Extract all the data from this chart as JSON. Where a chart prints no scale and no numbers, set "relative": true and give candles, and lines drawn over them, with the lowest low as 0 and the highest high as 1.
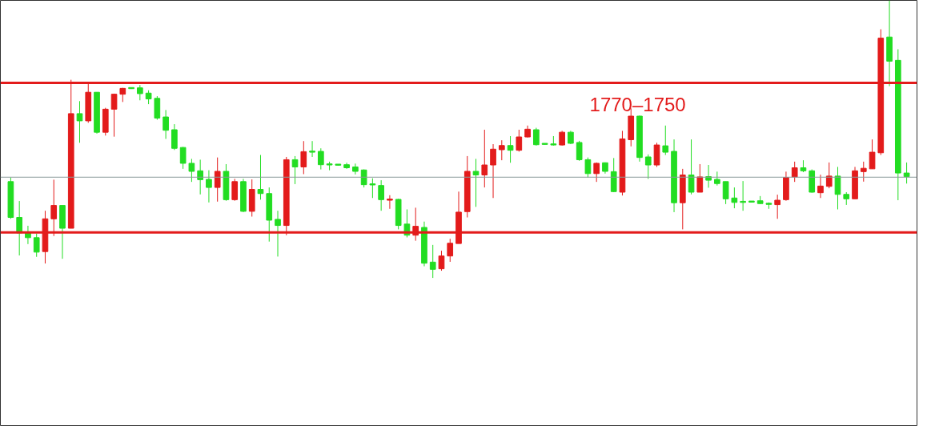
{
  "chart_data": {
    "type": "candlestick",
    "relative": true,
    "grid": false,
    "tick_labels": false,
    "annotations": [
      "1770–1750"
    ],
    "ref_lines": [
      {
        "axis": "y",
        "value": 0.703,
        "color": "#e31b1b"
      },
      {
        "axis": "y",
        "value": 0.164,
        "color": "#e31b1b"
      },
      {
        "axis": "y",
        "value": 0.363,
        "color": "#8a9a9a"
      }
    ],
    "categories": [
      null,
      null,
      null,
      null,
      null,
      null,
      null,
      null,
      null,
      null,
      null,
      null,
      null,
      null,
      null,
      null,
      null,
      null,
      null,
      null,
      null,
      null,
      null,
      null,
      null,
      null,
      null,
      null,
      null,
      null,
      null,
      null,
      null,
      null,
      null,
      null,
      null,
      null,
      null,
      null,
      null,
      null,
      null,
      null,
      null,
      null,
      null,
      null,
      null,
      null,
      null,
      null,
      null,
      null,
      null,
      null,
      null,
      null,
      null,
      null,
      null,
      null,
      null,
      null,
      null,
      null,
      null,
      null,
      null,
      null,
      null,
      null,
      null,
      null,
      null,
      null,
      null,
      null,
      null,
      null,
      null,
      null,
      null,
      null,
      null,
      null,
      null,
      null,
      null,
      null,
      null,
      null,
      null,
      null,
      null,
      null,
      null,
      null,
      null,
      null,
      null,
      null,
      null,
      null,
      null
    ],
    "ohlc": [
      [
        0.347,
        0.362,
        0.213,
        0.218
      ],
      [
        0.218,
        0.277,
        0.081,
        0.162
      ],
      [
        0.162,
        0.188,
        0.122,
        0.145
      ],
      [
        0.145,
        0.16,
        0.076,
        0.093
      ],
      [
        0.095,
        0.242,
        0.052,
        0.213
      ],
      [
        0.213,
        0.354,
        0.151,
        0.261
      ],
      [
        0.261,
        0.261,
        0.069,
        0.179
      ],
      [
        0.179,
        0.714,
        0.179,
        0.592
      ],
      [
        0.592,
        0.637,
        0.487,
        0.566
      ],
      [
        0.566,
        0.703,
        0.559,
        0.669
      ],
      [
        0.669,
        0.669,
        0.52,
        0.525
      ],
      [
        0.525,
        0.613,
        0.513,
        0.608
      ],
      [
        0.608,
        0.664,
        0.509,
        0.662
      ],
      [
        0.662,
        0.685,
        0.634,
        0.683
      ],
      [
        0.683,
        0.684,
        0.681,
        0.682
      ],
      [
        0.685,
        0.695,
        0.64,
        0.664
      ],
      [
        0.666,
        0.676,
        0.626,
        0.645
      ],
      [
        0.647,
        0.655,
        0.57,
        0.576
      ],
      [
        0.58,
        0.605,
        0.501,
        0.532
      ],
      [
        0.534,
        0.554,
        0.461,
        0.467
      ],
      [
        0.47,
        0.472,
        0.393,
        0.413
      ],
      [
        0.413,
        0.429,
        0.346,
        0.384
      ],
      [
        0.386,
        0.426,
        0.301,
        0.354
      ],
      [
        0.355,
        0.388,
        0.272,
        0.326
      ],
      [
        0.326,
        0.434,
        0.275,
        0.384
      ],
      [
        0.384,
        0.41,
        0.278,
        0.282
      ],
      [
        0.282,
        0.357,
        0.278,
        0.347
      ],
      [
        0.347,
        0.357,
        0.237,
        0.24
      ],
      [
        0.24,
        0.355,
        0.221,
        0.319
      ],
      [
        0.319,
        0.443,
        0.282,
        0.304
      ],
      [
        0.304,
        0.326,
        0.131,
        0.208
      ],
      [
        0.211,
        0.242,
        0.077,
        0.189
      ],
      [
        0.189,
        0.436,
        0.154,
        0.426
      ],
      [
        0.426,
        0.439,
        0.338,
        0.4
      ],
      [
        0.4,
        0.493,
        0.374,
        0.455
      ],
      [
        0.455,
        0.493,
        0.436,
        0.453
      ],
      [
        0.456,
        0.467,
        0.391,
        0.408
      ],
      [
        0.41,
        0.419,
        0.388,
        0.407
      ],
      [
        0.407,
        0.408,
        0.405,
        0.406
      ],
      [
        0.408,
        0.415,
        0.393,
        0.397
      ],
      [
        0.4,
        0.412,
        0.373,
        0.384
      ],
      [
        0.389,
        0.391,
        0.326,
        0.336
      ],
      [
        0.338,
        0.359,
        0.288,
        0.335
      ],
      [
        0.333,
        0.352,
        0.242,
        0.282
      ],
      [
        0.28,
        0.298,
        0.249,
        0.282
      ],
      [
        0.283,
        0.285,
        0.175,
        0.189
      ],
      [
        0.194,
        0.247,
        0.146,
        0.154
      ],
      [
        0.154,
        0.253,
        0.134,
        0.186
      ],
      [
        0.182,
        0.203,
        0.042,
        0.053
      ],
      [
        0.057,
        0.119,
        0,
        0.031
      ],
      [
        0.033,
        0.098,
        0.026,
        0.079
      ],
      [
        0.079,
        0.141,
        0.058,
        0.125
      ],
      [
        0.124,
        0.311,
        0.124,
        0.237
      ],
      [
        0.239,
        0.439,
        0.218,
        0.384
      ],
      [
        0.384,
        0.429,
        0.256,
        0.371
      ],
      [
        0.371,
        0.534,
        0.326,
        0.407
      ],
      [
        0.407,
        0.482,
        0.288,
        0.464
      ],
      [
        0.462,
        0.496,
        0.424,
        0.477
      ],
      [
        0.477,
        0.511,
        0.415,
        0.46
      ],
      [
        0.46,
        0.534,
        0.455,
        0.508
      ],
      [
        0.508,
        0.549,
        0.506,
        0.536
      ],
      [
        0.534,
        0.541,
        0.477,
        0.48
      ],
      [
        0.482,
        0.483,
        0.481,
        0.481
      ],
      [
        0.482,
        0.511,
        0.477,
        0.479
      ],
      [
        0.479,
        0.53,
        0.477,
        0.525
      ],
      [
        0.525,
        0.53,
        0.482,
        0.485
      ],
      [
        0.488,
        0.494,
        0.422,
        0.426
      ],
      [
        0.426,
        0.434,
        0.362,
        0.376
      ],
      [
        0.376,
        0.416,
        0.346,
        0.413
      ],
      [
        0.415,
        0.416,
        0.376,
        0.384
      ],
      [
        0.383,
        0.432,
        0.309,
        0.311
      ],
      [
        0.309,
        0.53,
        0.297,
        0.501
      ],
      [
        0.498,
        0.611,
        0.474,
        0.583
      ],
      [
        0.583,
        0.585,
        0.419,
        0.434
      ],
      [
        0.436,
        0.445,
        0.357,
        0.407
      ],
      [
        0.407,
        0.487,
        0.4,
        0.479
      ],
      [
        0.476,
        0.549,
        0.443,
        0.453
      ],
      [
        0.456,
        0.499,
        0.237,
        0.271
      ],
      [
        0.271,
        0.393,
        0.175,
        0.371
      ],
      [
        0.371,
        0.499,
        0.301,
        0.309
      ],
      [
        0.309,
        0.41,
        0.309,
        0.364
      ],
      [
        0.365,
        0.407,
        0.325,
        0.352
      ],
      [
        0.355,
        0.383,
        0.333,
        0.34
      ],
      [
        0.347,
        0.347,
        0.266,
        0.285
      ],
      [
        0.288,
        0.326,
        0.251,
        0.272
      ],
      [
        0.274,
        0.349,
        0.242,
        0.272
      ],
      [
        0.274,
        0.274,
        0.272,
        0.273
      ],
      [
        0.278,
        0.295,
        0.266,
        0.268
      ],
      [
        0.268,
        0.272,
        0.249,
        0.265
      ],
      [
        0.264,
        0.3,
        0.213,
        0.28
      ],
      [
        0.282,
        0.383,
        0.278,
        0.362
      ],
      [
        0.364,
        0.419,
        0.346,
        0.397
      ],
      [
        0.397,
        0.424,
        0.381,
        0.386
      ],
      [
        0.386,
        0.391,
        0.307,
        0.309
      ],
      [
        0.307,
        0.372,
        0.288,
        0.331
      ],
      [
        0.33,
        0.416,
        0.323,
        0.367
      ],
      [
        0.367,
        0.4,
        0.247,
        0.301
      ],
      [
        0.301,
        0.309,
        0.263,
        0.285
      ],
      [
        0.285,
        0.4,
        0.285,
        0.386
      ],
      [
        0.383,
        0.419,
        0.347,
        0.395
      ],
      [
        0.393,
        0.499,
        0.393,
        0.453
      ],
      [
        0.451,
        0.896,
        0.443,
        0.864
      ],
      [
        0.868,
        1,
        0.691,
        0.781
      ],
      [
        0.784,
        0.824,
        0.28,
        0.378
      ],
      [
        0.378,
        0.416,
        0.34,
        0.365
      ]
    ],
    "colors": [
      "#22dd22",
      "#22dd22",
      "#22dd22",
      "#22dd22",
      "#e31b1b",
      "#e31b1b",
      "#22dd22",
      "#e31b1b",
      "#22dd22",
      "#e31b1b",
      "#22dd22",
      "#e31b1b",
      "#e31b1b",
      "#e31b1b",
      "#22dd22",
      "#22dd22",
      "#22dd22",
      "#22dd22",
      "#22dd22",
      "#22dd22",
      "#22dd22",
      "#22dd22",
      "#22dd22",
      "#22dd22",
      "#e31b1b",
      "#22dd22",
      "#e31b1b",
      "#22dd22",
      "#e31b1b",
      "#22dd22",
      "#22dd22",
      "#22dd22",
      "#e31b1b",
      "#22dd22",
      "#e31b1b",
      "#22dd22",
      "#22dd22",
      "#22dd22",
      "#22dd22",
      "#22dd22",
      "#22dd22",
      "#22dd22",
      "#22dd22",
      "#22dd22",
      "#e31b1b",
      "#22dd22",
      "#22dd22",
      "#e31b1b",
      "#22dd22",
      "#22dd22",
      "#e31b1b",
      "#e31b1b",
      "#e31b1b",
      "#e31b1b",
      "#22dd22",
      "#e31b1b",
      "#e31b1b",
      "#e31b1b",
      "#22dd22",
      "#e31b1b",
      "#e31b1b",
      "#22dd22",
      "#22dd22",
      "#22dd22",
      "#e31b1b",
      "#22dd22",
      "#22dd22",
      "#22dd22",
      "#e31b1b",
      "#22dd22",
      "#22dd22",
      "#e31b1b",
      "#e31b1b",
      "#22dd22",
      "#22dd22",
      "#e31b1b",
      "#22dd22",
      "#22dd22",
      "#e31b1b",
      "#22dd22",
      "#e31b1b",
      "#22dd22",
      "#22dd22",
      "#22dd22",
      "#22dd22",
      "#22dd22",
      "#22dd22",
      "#22dd22",
      "#22dd22",
      "#e31b1b",
      "#e31b1b",
      "#e31b1b",
      "#22dd22",
      "#22dd22",
      "#e31b1b",
      "#e31b1b",
      "#22dd22",
      "#22dd22",
      "#e31b1b",
      "#e31b1b",
      "#e31b1b",
      "#e31b1b",
      "#22dd22",
      "#22dd22",
      "#22dd22"
    ]
  }
}
